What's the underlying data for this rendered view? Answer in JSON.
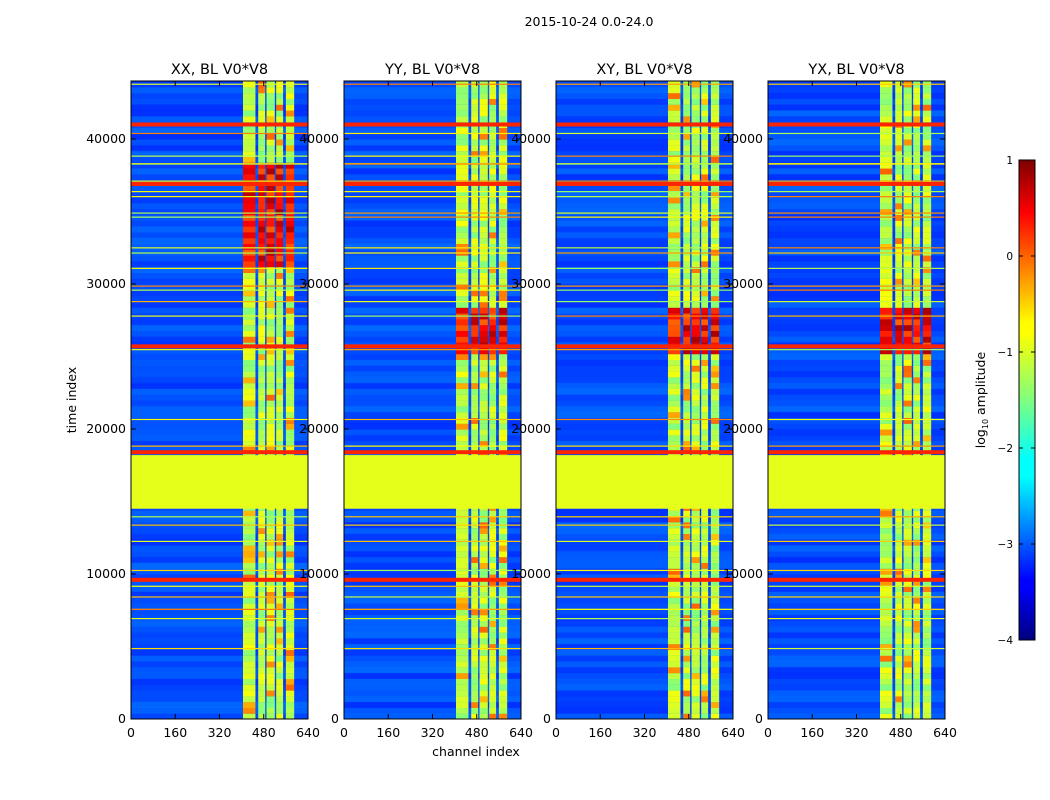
{
  "chart_data": {
    "type": "heatmap",
    "suptitle": "2015-10-24 0.0-24.0",
    "xlabel": "channel index",
    "ylabel": "time index",
    "xlim": [
      0,
      640
    ],
    "ylim": [
      0,
      44000
    ],
    "xticks": [
      0,
      160,
      320,
      480,
      640
    ],
    "yticks": [
      0,
      10000,
      20000,
      30000,
      40000
    ],
    "colorbar": {
      "label": "log10 amplitude",
      "label_base": "log",
      "label_sub": "10",
      "label_rest": " amplitude",
      "range": [
        -4,
        1
      ],
      "ticks": [
        1,
        0,
        -1,
        -2,
        -3,
        -4
      ],
      "tick_labels": [
        "1",
        "0",
        "−1",
        "−2",
        "−3",
        "−4"
      ],
      "colormap": "jet"
    },
    "panels": [
      {
        "title": "XX, BL V0*V8",
        "pol": "XX",
        "hot_time": [
          31000,
          38000
        ]
      },
      {
        "title": "YY, BL V0*V8",
        "pol": "YY",
        "hot_time": [
          25000,
          28000
        ]
      },
      {
        "title": "XY, BL V0*V8",
        "pol": "XY",
        "hot_time": [
          25000,
          28000
        ]
      },
      {
        "title": "YX, BL V0*V8",
        "pol": "YX",
        "hot_time": [
          25000,
          28000
        ]
      }
    ],
    "features": {
      "background_log_amp": -3.0,
      "band_channels": [
        [
          405,
          450
        ],
        [
          460,
          485
        ],
        [
          490,
          520
        ],
        [
          525,
          550
        ],
        [
          560,
          590
        ]
      ],
      "band_log_amp": -1.2,
      "gaps": [
        [
          14500,
          18200
        ]
      ],
      "gap_log_amp": -1.0,
      "flag_rows": [
        25700,
        36900,
        41000,
        18400,
        9600
      ],
      "flag_log_amp": 0.2
    }
  }
}
